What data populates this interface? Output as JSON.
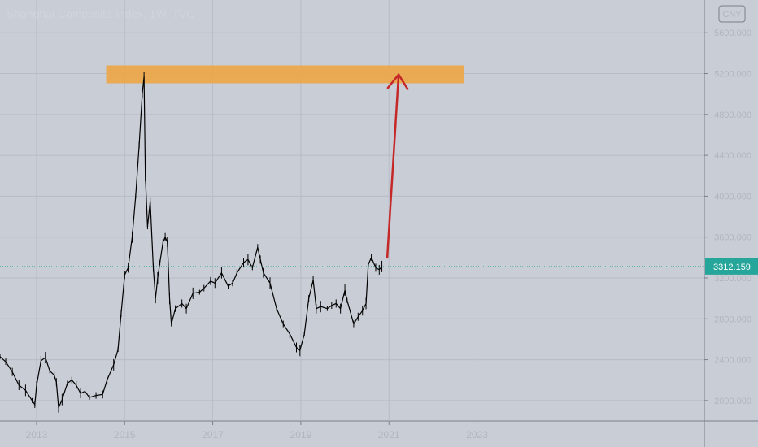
{
  "chart_data": {
    "type": "line",
    "title": "Shanghai Composite Index, 1W, TVC",
    "currency": "CNY",
    "x_ticks": [
      "2013",
      "2015",
      "2017",
      "2019",
      "2021",
      "2023"
    ],
    "y_ticks": [
      "2000.000",
      "2400.000",
      "2800.000",
      "3200.000",
      "3600.000",
      "4000.000",
      "4400.000",
      "4800.000",
      "5200.000",
      "5600.000"
    ],
    "ylim": [
      1800,
      5920
    ],
    "xlim": [
      2012.17,
      2028.16
    ],
    "last_price": 3312.159,
    "last_price_label": "3312.159",
    "series": [
      {
        "values": [
          [
            2012.17,
            2430
          ],
          [
            2012.3,
            2380
          ],
          [
            2012.45,
            2280
          ],
          [
            2012.6,
            2150
          ],
          [
            2012.75,
            2100
          ],
          [
            2012.9,
            2000
          ],
          [
            2012.96,
            1960
          ],
          [
            2013.0,
            2150
          ],
          [
            2013.1,
            2390
          ],
          [
            2013.2,
            2420
          ],
          [
            2013.3,
            2290
          ],
          [
            2013.4,
            2250
          ],
          [
            2013.45,
            2180
          ],
          [
            2013.5,
            1930
          ],
          [
            2013.58,
            2010
          ],
          [
            2013.7,
            2170
          ],
          [
            2013.8,
            2200
          ],
          [
            2013.9,
            2150
          ],
          [
            2014.0,
            2070
          ],
          [
            2014.1,
            2090
          ],
          [
            2014.2,
            2030
          ],
          [
            2014.35,
            2050
          ],
          [
            2014.5,
            2060
          ],
          [
            2014.6,
            2200
          ],
          [
            2014.75,
            2350
          ],
          [
            2014.85,
            2500
          ],
          [
            2014.92,
            2850
          ],
          [
            2015.0,
            3230
          ],
          [
            2015.08,
            3300
          ],
          [
            2015.17,
            3600
          ],
          [
            2015.25,
            4000
          ],
          [
            2015.33,
            4500
          ],
          [
            2015.4,
            5000
          ],
          [
            2015.44,
            5170
          ],
          [
            2015.47,
            4200
          ],
          [
            2015.52,
            3700
          ],
          [
            2015.58,
            3950
          ],
          [
            2015.65,
            3300
          ],
          [
            2015.7,
            3000
          ],
          [
            2015.75,
            3200
          ],
          [
            2015.8,
            3350
          ],
          [
            2015.87,
            3550
          ],
          [
            2015.92,
            3600
          ],
          [
            2015.97,
            3550
          ],
          [
            2016.02,
            3000
          ],
          [
            2016.06,
            2750
          ],
          [
            2016.15,
            2900
          ],
          [
            2016.3,
            2950
          ],
          [
            2016.4,
            2900
          ],
          [
            2016.55,
            3050
          ],
          [
            2016.7,
            3060
          ],
          [
            2016.8,
            3100
          ],
          [
            2016.95,
            3170
          ],
          [
            2017.05,
            3150
          ],
          [
            2017.2,
            3250
          ],
          [
            2017.35,
            3120
          ],
          [
            2017.45,
            3150
          ],
          [
            2017.55,
            3250
          ],
          [
            2017.7,
            3350
          ],
          [
            2017.8,
            3380
          ],
          [
            2017.9,
            3300
          ],
          [
            2018.02,
            3500
          ],
          [
            2018.08,
            3380
          ],
          [
            2018.15,
            3250
          ],
          [
            2018.3,
            3150
          ],
          [
            2018.45,
            2900
          ],
          [
            2018.6,
            2750
          ],
          [
            2018.75,
            2650
          ],
          [
            2018.9,
            2520
          ],
          [
            2018.98,
            2490
          ],
          [
            2019.08,
            2650
          ],
          [
            2019.18,
            3000
          ],
          [
            2019.28,
            3180
          ],
          [
            2019.35,
            2900
          ],
          [
            2019.45,
            2920
          ],
          [
            2019.6,
            2900
          ],
          [
            2019.7,
            2930
          ],
          [
            2019.8,
            2950
          ],
          [
            2019.9,
            2900
          ],
          [
            2020.0,
            3080
          ],
          [
            2020.05,
            2980
          ],
          [
            2020.2,
            2750
          ],
          [
            2020.3,
            2820
          ],
          [
            2020.4,
            2880
          ],
          [
            2020.48,
            2950
          ],
          [
            2020.53,
            3330
          ],
          [
            2020.6,
            3400
          ],
          [
            2020.7,
            3300
          ],
          [
            2020.78,
            3280
          ],
          [
            2020.84,
            3312.159
          ]
        ]
      }
    ],
    "resistance_zone": {
      "y_from": 5105,
      "y_to": 5280,
      "x_from": 2014.58,
      "x_to": 2022.7,
      "color": "#f0a33d"
    },
    "projection_arrow": {
      "from": [
        2020.96,
        3390
      ],
      "to": [
        2021.22,
        5190
      ],
      "color": "#c62828"
    },
    "colors": {
      "background": "#1e222d",
      "line": "#000000",
      "price_line": "#26a69a",
      "last_price_bg": "#26a69a",
      "axis_text": "#b2b5be"
    }
  }
}
